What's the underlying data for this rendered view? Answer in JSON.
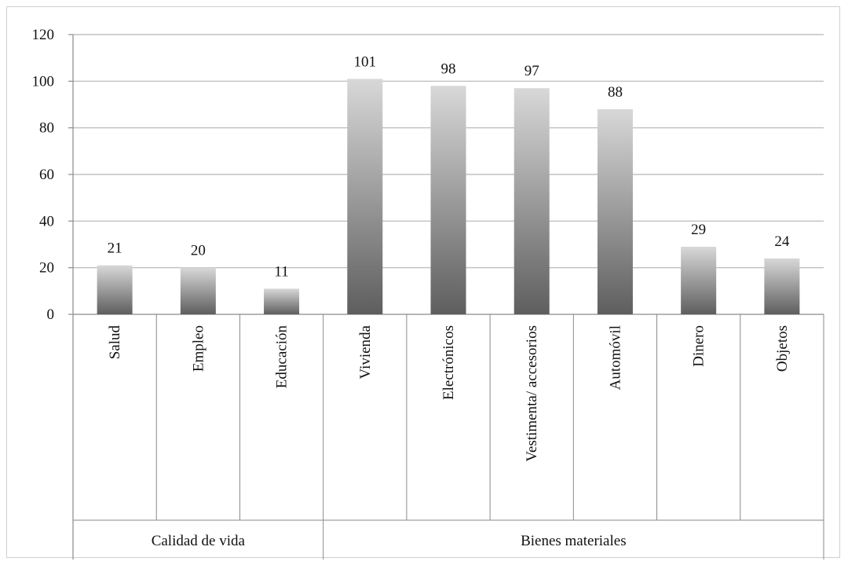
{
  "chart_data": {
    "type": "bar",
    "groups": [
      {
        "label": "Calidad de vida",
        "categories": [
          "Salud",
          "Empleo",
          "Educación"
        ]
      },
      {
        "label": "Bienes materiales",
        "categories": [
          "Vivienda",
          "Electrónicos",
          "Vestimenta/ accesorios",
          "Automóvil",
          "Dinero",
          "Objetos"
        ]
      }
    ],
    "categories": [
      "Salud",
      "Empleo",
      "Educación",
      "Vivienda",
      "Electrónicos",
      "Vestimenta/ accesorios",
      "Automóvil",
      "Dinero",
      "Objetos"
    ],
    "values": [
      21,
      20,
      11,
      101,
      98,
      97,
      88,
      29,
      24
    ],
    "title": "",
    "xlabel": "",
    "ylabel": "",
    "ylim": [
      0,
      120
    ],
    "yticks": [
      0,
      20,
      40,
      60,
      80,
      100,
      120
    ],
    "grid": true,
    "data_labels": true,
    "colors": {
      "bar_light": "#d8d8d8",
      "bar_dark": "#5e5e5e",
      "grid": "#b5b5b5",
      "axis": "#8a8a8a"
    }
  }
}
